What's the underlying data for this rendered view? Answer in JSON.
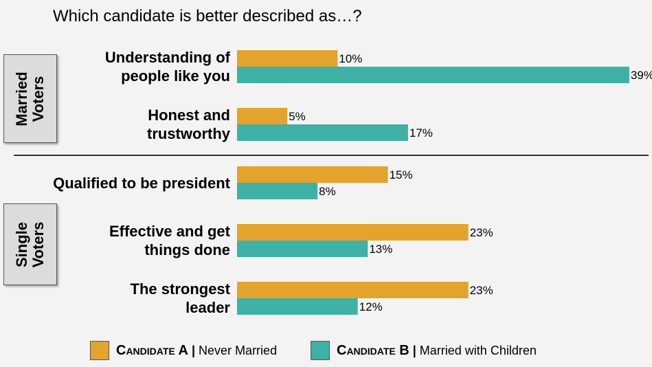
{
  "chart_data": {
    "type": "bar",
    "orientation": "horizontal",
    "title": "Which candidate is better described as…?",
    "categories": [
      "Understanding of people like you",
      "Honest and trustworthy",
      "Qualified to be president",
      "Effective and get things done",
      "The strongest leader"
    ],
    "category_lines": [
      [
        "Understanding of",
        "people like you"
      ],
      [
        "Honest and",
        "trustworthy"
      ],
      [
        "Qualified to be president"
      ],
      [
        "Effective and get",
        "things done"
      ],
      [
        "The strongest",
        "leader"
      ]
    ],
    "series": [
      {
        "name": "Candidate A | Never Married",
        "color": "#e3a32c",
        "values": [
          10,
          5,
          15,
          23,
          23
        ]
      },
      {
        "name": "Candidate B | Married with Children",
        "color": "#3eb0a6",
        "values": [
          39,
          17,
          8,
          13,
          12
        ]
      }
    ],
    "value_suffix": "%",
    "groups": [
      {
        "label": "Married\nVoters",
        "categories": [
          0,
          1
        ]
      },
      {
        "label": "Single\nVoters",
        "categories": [
          2,
          3,
          4
        ]
      }
    ]
  },
  "legend": {
    "a": {
      "name": "Candidate A",
      "desc": "Never Married",
      "sep": "|"
    },
    "b": {
      "name": "Candidate B",
      "desc": "Married with Children",
      "sep": "|"
    }
  }
}
